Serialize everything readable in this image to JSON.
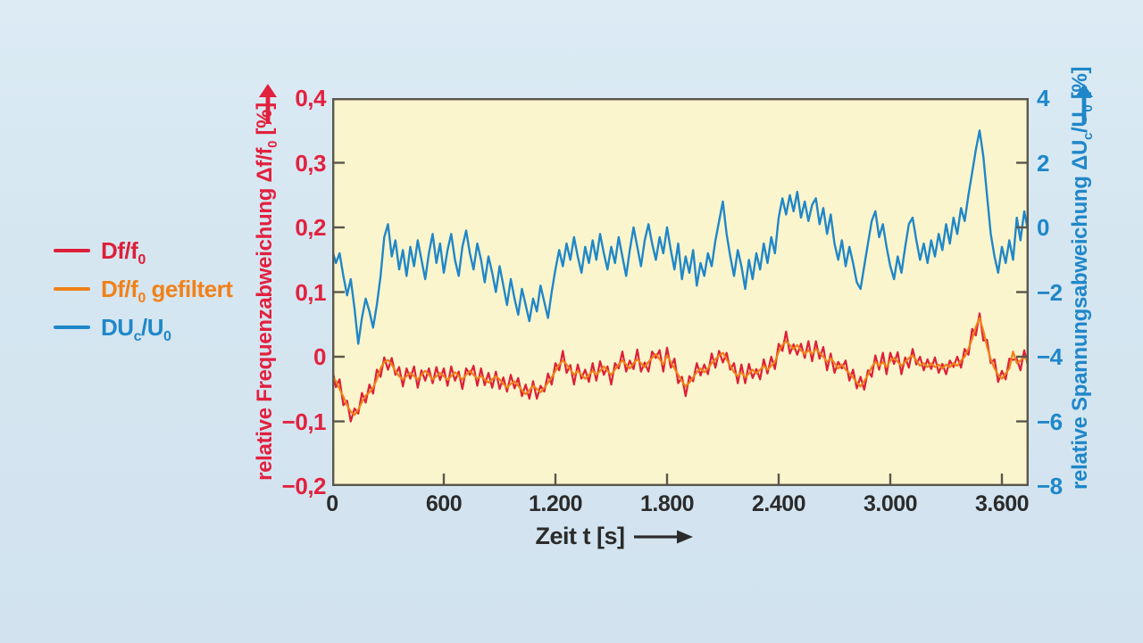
{
  "figure": {
    "background_color": "#d5e6f1",
    "plot_background_color": "#fbf5cd",
    "frame_color": "#5a574d"
  },
  "legend": {
    "items": [
      {
        "name": "Df/f0",
        "parts": {
          "pre": "Df/f",
          "sub": "0",
          "mid": "",
          "sub2": "",
          "post": ""
        }
      },
      {
        "name": "Df/f0 gefiltert",
        "parts": {
          "pre": "Df/f",
          "sub": "0",
          "mid": "",
          "sub2": "",
          "post": " gefiltert"
        }
      },
      {
        "name": "DUc/U0",
        "parts": {
          "pre": "DU",
          "sub": "c",
          "mid": "/U",
          "sub2": "0",
          "post": ""
        }
      }
    ]
  },
  "chart_data": {
    "type": "line",
    "title": "",
    "grid": false,
    "legend_position": "left-outside",
    "x_axis": {
      "label": "Zeit t [s]",
      "tick_labels": [
        "0",
        "600",
        "1.200",
        "1.800",
        "2.400",
        "3.000",
        "3.600"
      ],
      "tick_values": [
        0,
        600,
        1200,
        1800,
        2400,
        3000,
        3600
      ],
      "lim": [
        0,
        3744
      ],
      "color": "#2b2b2b"
    },
    "axes": {
      "left": {
        "title": {
          "pre": "relative Frequenzabweichung Δf/f",
          "sub": "0",
          "mid": "",
          "sub2": "",
          "post": " [%]"
        },
        "tick_labels": [
          "0,4",
          "0,3",
          "0,2",
          "0,1",
          "0",
          "−0,1",
          "−0,2"
        ],
        "tick_values": [
          0.4,
          0.3,
          0.2,
          0.1,
          0,
          -0.1,
          -0.2
        ],
        "lim": [
          -0.2,
          0.4
        ],
        "color": "#e2213f"
      },
      "right": {
        "title": {
          "pre": "relative Spannungsabweichung ΔU",
          "sub": "c",
          "mid": "/U",
          "sub2": "0",
          "post": " [%]"
        },
        "tick_labels": [
          "4",
          "2",
          "0",
          "−2",
          "−4",
          "−6",
          "−8"
        ],
        "tick_values": [
          4,
          2,
          0,
          -2,
          -4,
          -6,
          -8
        ],
        "lim": [
          -8,
          4
        ],
        "color": "#1f87c9"
      }
    },
    "x_start": 0,
    "x_step": 20,
    "series": [
      {
        "name": "Df/f0",
        "axis": "left",
        "color": "#dd1f38",
        "width": 2.2,
        "values": [
          -0.018,
          -0.047,
          -0.035,
          -0.075,
          -0.068,
          -0.1,
          -0.08,
          -0.088,
          -0.056,
          -0.071,
          -0.043,
          -0.057,
          -0.02,
          -0.031,
          -0.001,
          -0.02,
          -0.002,
          -0.028,
          -0.016,
          -0.046,
          -0.018,
          -0.034,
          -0.015,
          -0.048,
          -0.021,
          -0.037,
          -0.018,
          -0.041,
          -0.016,
          -0.036,
          -0.018,
          -0.045,
          -0.015,
          -0.037,
          -0.023,
          -0.05,
          -0.018,
          -0.028,
          -0.014,
          -0.045,
          -0.018,
          -0.044,
          -0.025,
          -0.048,
          -0.023,
          -0.05,
          -0.032,
          -0.054,
          -0.028,
          -0.049,
          -0.033,
          -0.061,
          -0.043,
          -0.065,
          -0.038,
          -0.065,
          -0.045,
          -0.054,
          -0.026,
          -0.043,
          -0.01,
          -0.021,
          0.009,
          -0.025,
          -0.013,
          -0.043,
          -0.012,
          -0.034,
          -0.02,
          -0.039,
          -0.01,
          -0.037,
          -0.007,
          -0.028,
          -0.015,
          -0.043,
          -0.01,
          -0.018,
          0.008,
          -0.023,
          -0.006,
          -0.019,
          0.011,
          -0.023,
          -0.009,
          -0.023,
          0.008,
          -0.002,
          0.01,
          -0.023,
          0.014,
          -0.017,
          -0.003,
          -0.041,
          -0.031,
          -0.061,
          -0.03,
          -0.038,
          -0.01,
          -0.029,
          -0.012,
          -0.027,
          0.005,
          -0.017,
          0.009,
          -0.009,
          0.006,
          -0.02,
          -0.01,
          -0.041,
          -0.012,
          -0.041,
          -0.011,
          -0.033,
          -0.019,
          -0.035,
          -0.004,
          -0.026,
          0.0,
          -0.019,
          0.02,
          0.009,
          0.039,
          0.005,
          0.019,
          0.003,
          0.02,
          -0.002,
          0.024,
          -0.007,
          0.024,
          -0.003,
          0.015,
          -0.021,
          0.005,
          -0.025,
          -0.008,
          -0.018,
          -0.006,
          -0.037,
          -0.02,
          -0.049,
          -0.031,
          -0.051,
          -0.021,
          -0.031,
          0.002,
          -0.02,
          0.006,
          -0.027,
          0.006,
          -0.011,
          0.007,
          -0.027,
          -0.001,
          -0.017,
          0.012,
          -0.012,
          0.0,
          -0.021,
          -0.004,
          -0.019,
          -0.001,
          -0.025,
          -0.011,
          -0.027,
          -0.006,
          -0.016,
          0.0,
          -0.017,
          0.012,
          0.003,
          0.043,
          0.033,
          0.067,
          0.025,
          0.026,
          -0.01,
          -0.004,
          -0.039,
          -0.022,
          -0.035,
          -0.003,
          -0.005,
          -0.003,
          -0.021,
          0.01,
          -0.014
        ]
      },
      {
        "name": "Df/f0 gefiltert",
        "axis": "left",
        "color": "#f08119",
        "width": 2.2,
        "values": [
          -0.03,
          -0.038,
          -0.05,
          -0.062,
          -0.075,
          -0.085,
          -0.09,
          -0.082,
          -0.07,
          -0.06,
          -0.055,
          -0.048,
          -0.035,
          -0.018,
          -0.008,
          -0.005,
          -0.012,
          -0.022,
          -0.03,
          -0.035,
          -0.03,
          -0.025,
          -0.03,
          -0.035,
          -0.028,
          -0.022,
          -0.028,
          -0.035,
          -0.03,
          -0.025,
          -0.03,
          -0.036,
          -0.03,
          -0.024,
          -0.03,
          -0.035,
          -0.028,
          -0.022,
          -0.028,
          -0.034,
          -0.03,
          -0.035,
          -0.04,
          -0.035,
          -0.03,
          -0.035,
          -0.042,
          -0.048,
          -0.042,
          -0.038,
          -0.045,
          -0.052,
          -0.058,
          -0.052,
          -0.045,
          -0.05,
          -0.055,
          -0.048,
          -0.04,
          -0.032,
          -0.022,
          -0.012,
          -0.006,
          -0.012,
          -0.02,
          -0.028,
          -0.022,
          -0.028,
          -0.034,
          -0.028,
          -0.022,
          -0.028,
          -0.022,
          -0.015,
          -0.022,
          -0.028,
          -0.02,
          -0.012,
          -0.006,
          -0.012,
          -0.018,
          -0.01,
          -0.004,
          -0.01,
          -0.016,
          -0.008,
          -0.002,
          0.004,
          -0.004,
          -0.012,
          0.002,
          -0.008,
          -0.018,
          -0.028,
          -0.038,
          -0.046,
          -0.04,
          -0.032,
          -0.024,
          -0.018,
          -0.024,
          -0.018,
          -0.01,
          -0.004,
          0.002,
          0.006,
          -0.004,
          -0.014,
          -0.024,
          -0.03,
          -0.024,
          -0.032,
          -0.026,
          -0.02,
          -0.026,
          -0.02,
          -0.014,
          -0.02,
          -0.014,
          -0.008,
          0.008,
          0.018,
          0.024,
          0.018,
          0.012,
          0.018,
          0.01,
          0.004,
          0.01,
          0.004,
          0.012,
          0.006,
          0.0,
          -0.008,
          -0.002,
          -0.01,
          -0.018,
          -0.012,
          -0.02,
          -0.026,
          -0.032,
          -0.04,
          -0.046,
          -0.038,
          -0.028,
          -0.016,
          -0.008,
          -0.014,
          -0.008,
          -0.016,
          -0.006,
          -0.002,
          -0.008,
          -0.014,
          -0.008,
          -0.002,
          0.002,
          -0.006,
          -0.014,
          -0.01,
          -0.016,
          -0.01,
          -0.016,
          -0.012,
          -0.018,
          -0.012,
          -0.016,
          -0.01,
          -0.014,
          -0.006,
          0.0,
          0.012,
          0.028,
          0.046,
          0.06,
          0.04,
          0.016,
          -0.004,
          -0.018,
          -0.028,
          -0.034,
          -0.026,
          -0.018,
          0.008,
          -0.01,
          -0.006,
          0.0,
          -0.008
        ]
      },
      {
        "name": "DUc/U0",
        "axis": "right",
        "color": "#1f87c9",
        "width": 2.4,
        "values": [
          -0.7,
          -1.1,
          -0.8,
          -1.5,
          -2.1,
          -1.6,
          -2.5,
          -3.6,
          -2.8,
          -2.2,
          -2.6,
          -3.1,
          -2.4,
          -1.5,
          -0.3,
          0.1,
          -0.9,
          -0.4,
          -1.3,
          -0.7,
          -1.5,
          -0.6,
          -1.2,
          -0.4,
          -1.0,
          -1.6,
          -0.8,
          -0.2,
          -1.1,
          -0.5,
          -1.4,
          -0.7,
          -0.2,
          -1.0,
          -1.5,
          -0.6,
          -0.1,
          -0.8,
          -1.3,
          -0.5,
          -1.0,
          -1.7,
          -0.9,
          -1.4,
          -2.0,
          -1.2,
          -1.8,
          -2.4,
          -1.6,
          -2.2,
          -2.7,
          -1.9,
          -2.4,
          -2.9,
          -2.2,
          -2.6,
          -1.8,
          -2.3,
          -2.8,
          -2.0,
          -1.3,
          -0.7,
          -1.2,
          -0.5,
          -1.0,
          -0.3,
          -0.9,
          -1.4,
          -0.6,
          -1.1,
          -0.4,
          -1.0,
          -0.2,
          -0.8,
          -1.3,
          -0.6,
          -1.1,
          -0.3,
          -0.9,
          -1.5,
          -0.7,
          0.0,
          -0.6,
          -1.2,
          -0.4,
          0.1,
          -0.5,
          -1.0,
          -0.3,
          -0.8,
          0.0,
          -0.7,
          -1.3,
          -0.5,
          -1.6,
          -0.9,
          -1.4,
          -0.7,
          -1.8,
          -1.1,
          -1.5,
          -0.8,
          -1.2,
          -0.4,
          0.2,
          0.8,
          -0.2,
          -0.9,
          -1.5,
          -0.7,
          -1.2,
          -1.9,
          -1.0,
          -1.6,
          -0.8,
          -1.3,
          -0.5,
          -1.1,
          -0.3,
          -0.8,
          0.3,
          0.9,
          0.4,
          1.0,
          0.5,
          1.1,
          0.3,
          0.8,
          0.2,
          0.7,
          0.9,
          0.1,
          0.6,
          -0.2,
          0.4,
          -0.5,
          -1.0,
          -0.4,
          -1.2,
          -0.6,
          -1.1,
          -1.7,
          -1.9,
          -1.2,
          -0.5,
          0.2,
          0.5,
          -0.3,
          0.1,
          -0.6,
          -1.2,
          -1.6,
          -0.9,
          -1.4,
          -0.6,
          0.1,
          0.3,
          -0.4,
          -1.0,
          -0.5,
          -1.1,
          -0.4,
          -0.9,
          -0.2,
          -0.7,
          0.1,
          -0.5,
          0.3,
          -0.2,
          0.6,
          0.2,
          1.0,
          1.7,
          2.4,
          3.0,
          2.2,
          1.0,
          -0.2,
          -0.9,
          -1.4,
          -0.6,
          -1.1,
          -0.4,
          -1.0,
          0.3,
          -0.4,
          0.5,
          -0.1
        ]
      }
    ]
  }
}
